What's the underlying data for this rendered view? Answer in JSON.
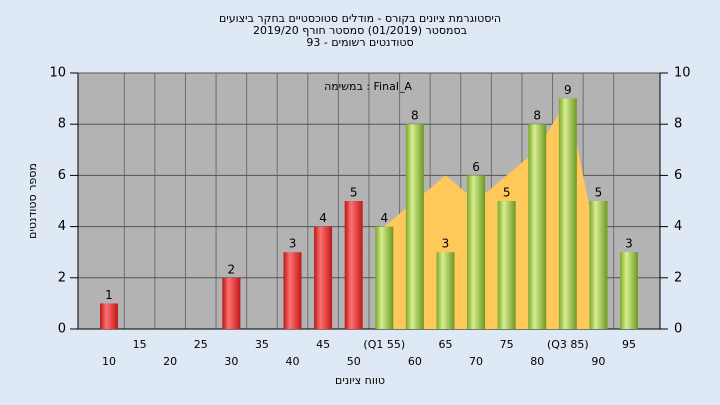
{
  "chart_data": {
    "type": "bar",
    "title": "היסטוגרמת ציונים בקורס - מודלים סטוכסטיים בחקר ביצועים",
    "subtitle": "בסמסטר  (01/2019)  סמסטר חורף 2019/20",
    "subtitle2": "93 - סטודנטים רשומים",
    "annotation": "במשימה : Final_A",
    "ylabel": "מספר סטודנטים",
    "xlabel": "טווח ציונים",
    "categories": [
      "10",
      "15",
      "20",
      "25",
      "30",
      "35",
      "40",
      "45",
      "50",
      "(Q1 55)",
      "60",
      "65",
      "70",
      "75",
      "80",
      "(Q3 85)",
      "90",
      "95"
    ],
    "values": [
      1,
      0,
      0,
      0,
      2,
      0,
      3,
      4,
      5,
      4,
      8,
      3,
      6,
      5,
      8,
      9,
      5,
      3
    ],
    "colors": [
      "red",
      "red",
      "red",
      "red",
      "red",
      "red",
      "red",
      "red",
      "red",
      "green",
      "green",
      "green",
      "green",
      "green",
      "green",
      "green",
      "green",
      "green"
    ],
    "area": {
      "color": "#ffc85a",
      "values": [
        null,
        null,
        null,
        null,
        null,
        null,
        null,
        null,
        null,
        4,
        5,
        6,
        5,
        6,
        7,
        9,
        3,
        null
      ]
    },
    "ylim": [
      0,
      10
    ],
    "yticks": [
      0,
      2,
      4,
      6,
      8,
      10
    ],
    "y2lim": [
      0,
      10
    ],
    "y2ticks": [
      0,
      2,
      4,
      6,
      8,
      10
    ],
    "grid": true
  }
}
